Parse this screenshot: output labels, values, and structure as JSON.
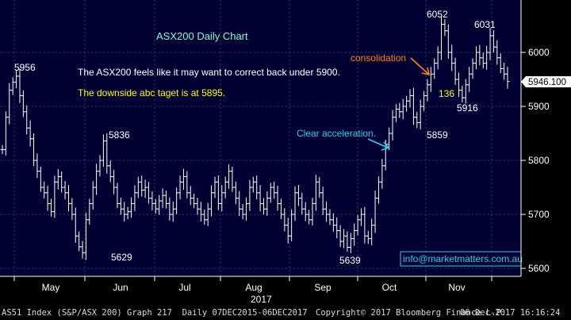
{
  "colors": {
    "plot_bg": "#000033",
    "price": "#ffffff",
    "grid": "#3a3a66",
    "title": "#7fffd4",
    "note_white": "#ffffff",
    "note_yellow": "#ffff00",
    "consolidation": "#ff7f27",
    "acceleration": "#33ccee",
    "axis_text": "#ffffff"
  },
  "annotations": {
    "title": "ASX200 Daily Chart",
    "note_line1": "The ASX200 feels like it may want to correct back under 5900.",
    "note_line2": "The downside abc taget is at 5895.",
    "consolidation": "consolidation",
    "acceleration": "Clear acceleration.",
    "watermark": "info@marketmatters.com.au",
    "last_price": "5946.100"
  },
  "status": {
    "left": "AS51 Index (S&P/ASX 200) Graph 217  Daily 07DEC2015-06DEC2017",
    "middle": "Copyright© 2017 Bloomberg Finance L.P.",
    "right": "06-Dec-2017 16:16:24"
  },
  "chart_data": {
    "type": "line",
    "subtype": "ohlc-bars",
    "title": "ASX200 Daily Chart",
    "y_ticks": [
      5600,
      5700,
      5800,
      5900,
      6000
    ],
    "y_tick_labels": [
      "5600",
      "5700",
      "5800",
      "5900",
      "6000"
    ],
    "ylim": [
      5580,
      6100
    ],
    "x_month_labels": [
      "May",
      "Jun",
      "Jul",
      "Aug",
      "Sep",
      "Oct",
      "Nov"
    ],
    "x_year_label": "2017",
    "grid": true,
    "last_value": 5946.1,
    "labeled_points": [
      {
        "label": "5956",
        "value": 5956,
        "period": "late Apr"
      },
      {
        "label": "5836",
        "value": 5836,
        "period": "early Jun"
      },
      {
        "label": "5629",
        "value": 5629,
        "period": "late May"
      },
      {
        "label": "5639",
        "value": 5639,
        "period": "late Sep"
      },
      {
        "label": "5859",
        "value": 5859,
        "period": "late Oct"
      },
      {
        "label": "6052",
        "value": 6052,
        "period": "early Nov"
      },
      {
        "label": "136",
        "value": 136,
        "period": "early Nov"
      },
      {
        "label": "5916",
        "value": 5916,
        "period": "mid Nov"
      },
      {
        "label": "6031",
        "value": 6031,
        "period": "late Nov"
      }
    ],
    "closes": [
      5820,
      5880,
      5930,
      5945,
      5956,
      5920,
      5890,
      5860,
      5840,
      5800,
      5780,
      5750,
      5740,
      5720,
      5705,
      5760,
      5770,
      5750,
      5740,
      5720,
      5700,
      5660,
      5640,
      5629,
      5690,
      5720,
      5750,
      5780,
      5800,
      5836,
      5790,
      5770,
      5750,
      5720,
      5710,
      5700,
      5705,
      5720,
      5740,
      5760,
      5745,
      5750,
      5730,
      5720,
      5710,
      5725,
      5735,
      5720,
      5700,
      5710,
      5740,
      5760,
      5770,
      5740,
      5730,
      5720,
      5710,
      5700,
      5690,
      5710,
      5740,
      5760,
      5720,
      5740,
      5760,
      5780,
      5750,
      5730,
      5710,
      5700,
      5720,
      5750,
      5760,
      5740,
      5720,
      5710,
      5730,
      5750,
      5740,
      5720,
      5700,
      5680,
      5660,
      5700,
      5740,
      5730,
      5710,
      5700,
      5690,
      5720,
      5760,
      5740,
      5710,
      5700,
      5690,
      5680,
      5670,
      5650,
      5660,
      5639,
      5655,
      5670,
      5690,
      5700,
      5660,
      5655,
      5680,
      5730,
      5760,
      5790,
      5830,
      5850,
      5880,
      5895,
      5890,
      5900,
      5910,
      5920,
      5880,
      5870,
      5900,
      5920,
      5940,
      5960,
      5980,
      6000,
      6052,
      6040,
      6000,
      5980,
      5950,
      5930,
      5916,
      5940,
      5960,
      5980,
      6000,
      5990,
      5980,
      6000,
      6031,
      6010,
      5990,
      5970,
      5960,
      5946.1
    ]
  }
}
